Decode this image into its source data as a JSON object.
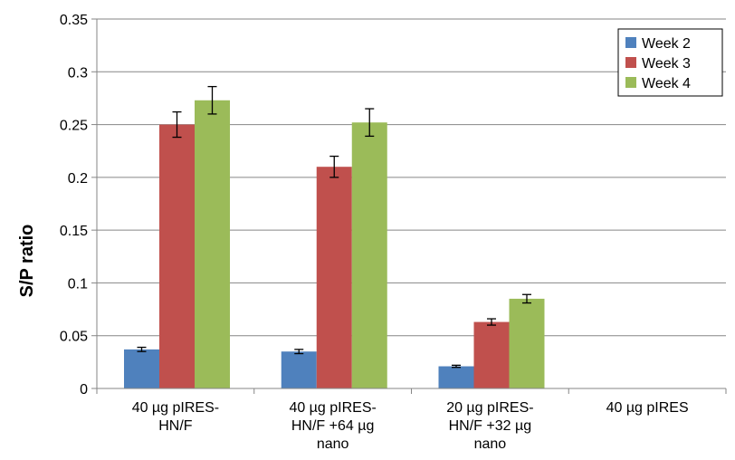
{
  "chart_data": {
    "type": "bar",
    "title": "",
    "xlabel": "",
    "ylabel": "S/P ratio",
    "ylim": [
      0,
      0.35
    ],
    "yticks": [
      0,
      0.05,
      0.1,
      0.15,
      0.2,
      0.25,
      0.3,
      0.35
    ],
    "ytick_labels": [
      "0",
      "0.05",
      "0.1",
      "0.15",
      "0.2",
      "0.25",
      "0.3",
      "0.35"
    ],
    "grid": true,
    "legend_position": "top-right",
    "categories": [
      [
        "40 µg pIRES-",
        "HN/F"
      ],
      [
        "40 µg pIRES-",
        "HN/F +64 µg",
        "nano"
      ],
      [
        "20 µg pIRES-",
        "HN/F +32 µg",
        "nano"
      ],
      [
        "40 µg pIRES"
      ]
    ],
    "series": [
      {
        "name": "Week 2",
        "color": "#4F81BD",
        "values": [
          0.037,
          0.035,
          0.021,
          0
        ],
        "errors": [
          0.002,
          0.002,
          0.001,
          0
        ]
      },
      {
        "name": "Week 3",
        "color": "#C0504D",
        "values": [
          0.25,
          0.21,
          0.063,
          0
        ],
        "errors": [
          0.012,
          0.01,
          0.003,
          0
        ]
      },
      {
        "name": "Week 4",
        "color": "#9BBB59",
        "values": [
          0.273,
          0.252,
          0.085,
          0
        ],
        "errors": [
          0.013,
          0.013,
          0.004,
          0
        ]
      }
    ]
  }
}
